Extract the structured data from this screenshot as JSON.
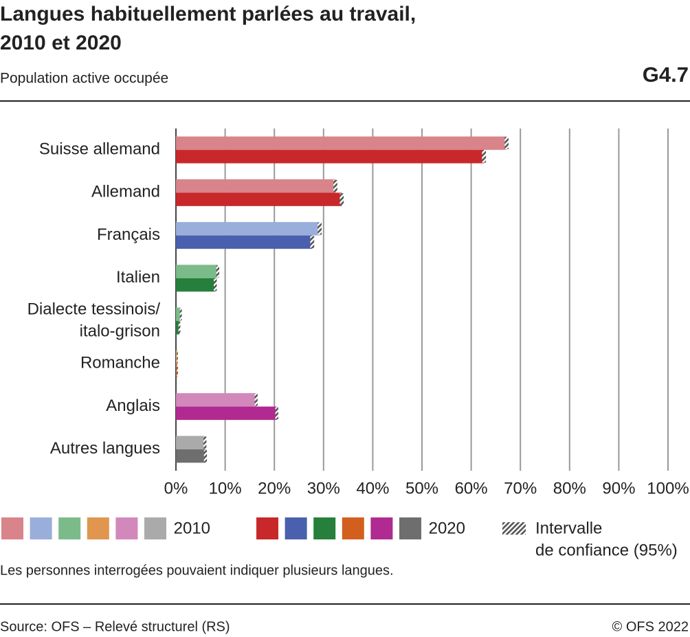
{
  "chart_data": {
    "type": "hbar",
    "title": [
      "Langues habituellement parlées au travail,",
      "2010 et 2020"
    ],
    "subtitle": "Population active occupée",
    "chart_id": "G4.7",
    "categories": [
      "Suisse allemand",
      "Allemand",
      "Français",
      "Italien",
      [
        "Dialecte tessinois/",
        "italo-grison"
      ],
      "Romanche",
      "Anglais",
      "Autres langues"
    ],
    "series": [
      {
        "name": "2010",
        "colors": [
          "#d9848a",
          "#d9848a",
          "#9aaedc",
          "#7bbb8a",
          "#7bbb8a",
          "#e0964f",
          "#d388bb",
          "#aaaaaa"
        ],
        "values": [
          67.2,
          32.4,
          29.2,
          8.5,
          1.0,
          0.3,
          16.3,
          5.9
        ],
        "errors": [
          0.4,
          0.4,
          0.4,
          0.3,
          0.2,
          0.1,
          0.3,
          0.3
        ]
      },
      {
        "name": "2020",
        "colors": [
          "#c8282a",
          "#c8282a",
          "#4a5fae",
          "#267f3b",
          "#267f3b",
          "#d35f1e",
          "#b02a91",
          "#6e6e6e"
        ],
        "values": [
          62.6,
          33.7,
          27.7,
          8.0,
          0.7,
          0.3,
          20.5,
          6.0
        ],
        "errors": [
          0.4,
          0.4,
          0.4,
          0.3,
          0.2,
          0.1,
          0.3,
          0.3
        ]
      }
    ],
    "ci_label": [
      "Intervalle",
      "de confiance (95%)"
    ],
    "xlim": [
      0,
      100
    ],
    "xticks": [
      {
        "value": 0,
        "label": "0%"
      },
      {
        "value": 10,
        "label": "10%"
      },
      {
        "value": 20,
        "label": "20%"
      },
      {
        "value": 30,
        "label": "30%"
      },
      {
        "value": 40,
        "label": "40%"
      },
      {
        "value": 50,
        "label": "50%"
      },
      {
        "value": 60,
        "label": "60%"
      },
      {
        "value": 70,
        "label": "70%"
      },
      {
        "value": 80,
        "label": "80%"
      },
      {
        "value": 90,
        "label": "90%"
      },
      {
        "value": 100,
        "label": "100%"
      }
    ],
    "grid": true,
    "note": "Les personnes interrogées pouvaient indiquer plusieurs langues.",
    "source": "Source: OFS – Relevé structurel (RS)",
    "copyright": "© OFS 2022"
  }
}
